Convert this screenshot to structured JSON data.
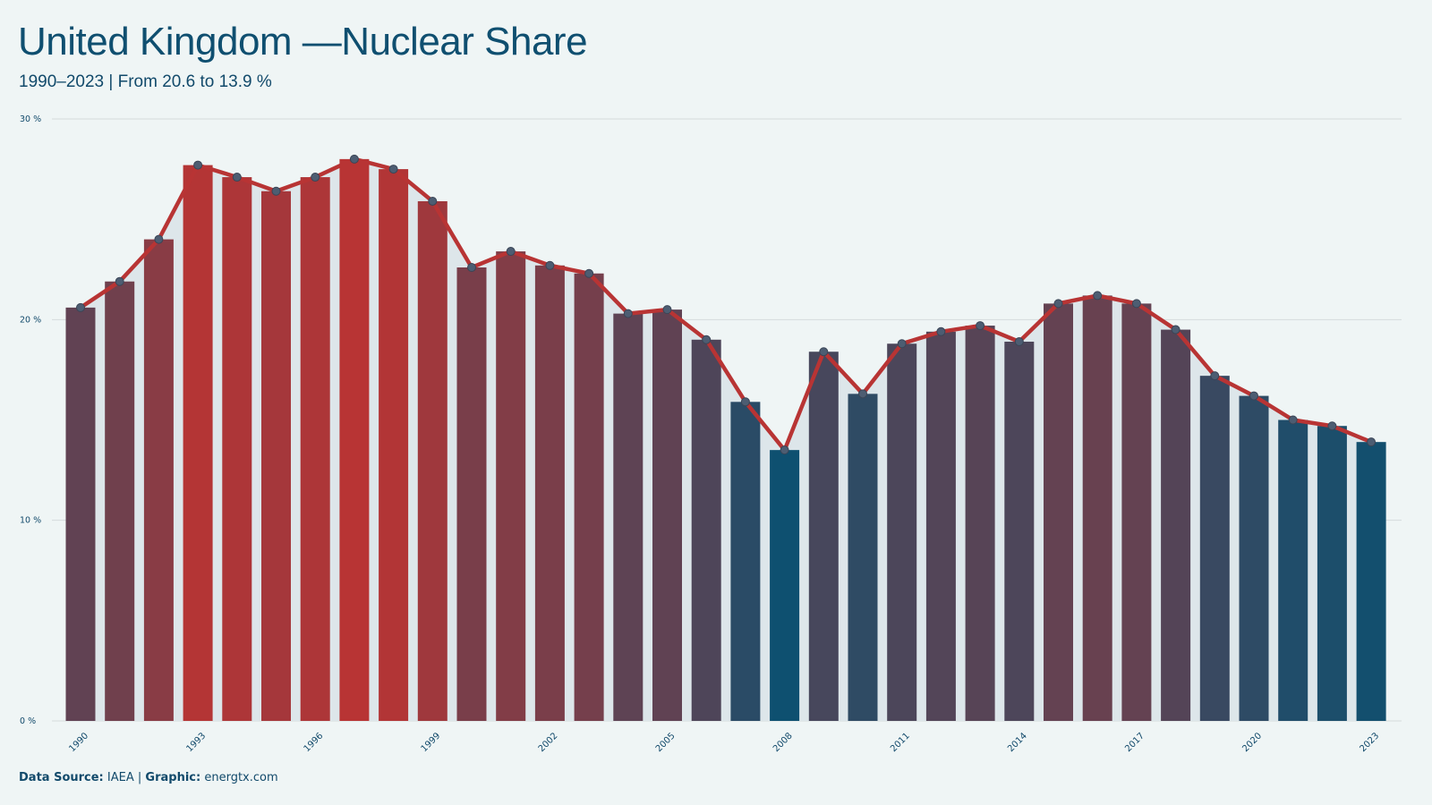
{
  "title": "United Kingdom —Nuclear Share",
  "subtitle": "1990–2023 | From 20.6 to 13.9 %",
  "footer": {
    "source_label": "Data Source:",
    "source_value": "IAEA",
    "separator": "|",
    "graphic_label": "Graphic:",
    "graphic_value": "energtx.com"
  },
  "colors": {
    "background": "#eff5f5",
    "high": "#b83434",
    "low": "#0e5070",
    "line": "#b83434",
    "marker_fill": "#4d5d72",
    "area": "#dde6ea",
    "grid": "#d4dadc",
    "text": "#124a6b"
  },
  "chart_data": {
    "type": "bar",
    "overlay": "line with markers",
    "y_unit": "%",
    "ylim": [
      0,
      30
    ],
    "yticks": [
      "0 %",
      "10 %",
      "20 %",
      "30 %"
    ],
    "xtick_labels": [
      "1990",
      "1993",
      "1996",
      "1999",
      "2002",
      "2005",
      "2008",
      "2011",
      "2014",
      "2017",
      "2020",
      "2023"
    ],
    "grid": "horizontal",
    "categories": [
      "1990",
      "1991",
      "1992",
      "1993",
      "1994",
      "1995",
      "1996",
      "1997",
      "1998",
      "1999",
      "2000",
      "2001",
      "2002",
      "2003",
      "2004",
      "2005",
      "2006",
      "2007",
      "2008",
      "2009",
      "2010",
      "2011",
      "2012",
      "2013",
      "2014",
      "2015",
      "2016",
      "2017",
      "2018",
      "2019",
      "2020",
      "2021",
      "2022",
      "2023"
    ],
    "values": [
      20.6,
      21.9,
      24.0,
      27.7,
      27.1,
      26.4,
      27.1,
      28.0,
      27.5,
      25.9,
      22.6,
      23.4,
      22.7,
      22.3,
      20.3,
      20.5,
      19.0,
      15.9,
      13.5,
      18.4,
      16.3,
      18.8,
      19.4,
      19.7,
      18.9,
      20.8,
      21.2,
      20.8,
      19.5,
      17.2,
      16.2,
      15.0,
      14.7,
      13.9
    ]
  }
}
